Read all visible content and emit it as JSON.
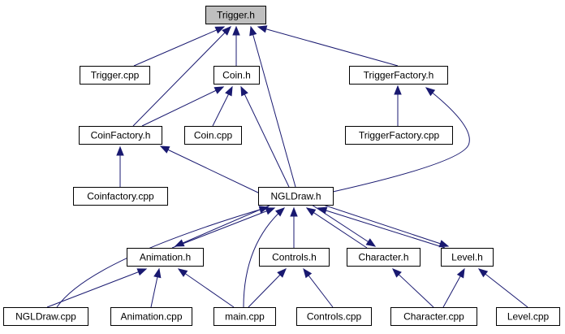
{
  "diagram": {
    "root": "Trigger.h",
    "highlight_color": "#bfbfbf",
    "edge_color": "#191970",
    "nodes": [
      {
        "id": "trigger_h",
        "label": "Trigger.h"
      },
      {
        "id": "trigger_cpp",
        "label": "Trigger.cpp"
      },
      {
        "id": "coin_h",
        "label": "Coin.h"
      },
      {
        "id": "triggerfactory_h",
        "label": "TriggerFactory.h"
      },
      {
        "id": "coinfactory_h",
        "label": "CoinFactory.h"
      },
      {
        "id": "coin_cpp",
        "label": "Coin.cpp"
      },
      {
        "id": "triggerfactory_cpp",
        "label": "TriggerFactory.cpp"
      },
      {
        "id": "coinfactory_cpp",
        "label": "Coinfactory.cpp"
      },
      {
        "id": "ngldraw_h",
        "label": "NGLDraw.h"
      },
      {
        "id": "animation_h",
        "label": "Animation.h"
      },
      {
        "id": "controls_h",
        "label": "Controls.h"
      },
      {
        "id": "character_h",
        "label": "Character.h"
      },
      {
        "id": "level_h",
        "label": "Level.h"
      },
      {
        "id": "ngldraw_cpp",
        "label": "NGLDraw.cpp"
      },
      {
        "id": "animation_cpp",
        "label": "Animation.cpp"
      },
      {
        "id": "main_cpp",
        "label": "main.cpp"
      },
      {
        "id": "controls_cpp",
        "label": "Controls.cpp"
      },
      {
        "id": "character_cpp",
        "label": "Character.cpp"
      },
      {
        "id": "level_cpp",
        "label": "Level.cpp"
      }
    ],
    "edges": [
      {
        "from": "trigger_cpp",
        "to": "trigger_h"
      },
      {
        "from": "coin_h",
        "to": "trigger_h"
      },
      {
        "from": "triggerfactory_h",
        "to": "trigger_h"
      },
      {
        "from": "coinfactory_h",
        "to": "trigger_h"
      },
      {
        "from": "ngldraw_h",
        "to": "trigger_h"
      },
      {
        "from": "triggerfactory_cpp",
        "to": "triggerfactory_h"
      },
      {
        "from": "ngldraw_h",
        "to": "triggerfactory_h"
      },
      {
        "from": "coinfactory_h",
        "to": "coin_h"
      },
      {
        "from": "coin_cpp",
        "to": "coin_h"
      },
      {
        "from": "ngldraw_h",
        "to": "coin_h"
      },
      {
        "from": "coinfactory_cpp",
        "to": "coinfactory_h"
      },
      {
        "from": "ngldraw_h",
        "to": "coinfactory_h"
      },
      {
        "from": "ngldraw_cpp",
        "to": "ngldraw_h"
      },
      {
        "from": "animation_h",
        "to": "ngldraw_h"
      },
      {
        "from": "main_cpp",
        "to": "ngldraw_h"
      },
      {
        "from": "controls_h",
        "to": "ngldraw_h"
      },
      {
        "from": "character_h",
        "to": "ngldraw_h"
      },
      {
        "from": "level_h",
        "to": "ngldraw_h"
      },
      {
        "from": "ngldraw_h",
        "to": "animation_h"
      },
      {
        "from": "ngldraw_h",
        "to": "character_h"
      },
      {
        "from": "ngldraw_h",
        "to": "level_h"
      },
      {
        "from": "ngldraw_cpp",
        "to": "animation_h"
      },
      {
        "from": "animation_cpp",
        "to": "animation_h"
      },
      {
        "from": "main_cpp",
        "to": "animation_h"
      },
      {
        "from": "main_cpp",
        "to": "controls_h"
      },
      {
        "from": "controls_cpp",
        "to": "controls_h"
      },
      {
        "from": "character_cpp",
        "to": "character_h"
      },
      {
        "from": "character_cpp",
        "to": "level_h"
      },
      {
        "from": "level_cpp",
        "to": "level_h"
      }
    ]
  }
}
